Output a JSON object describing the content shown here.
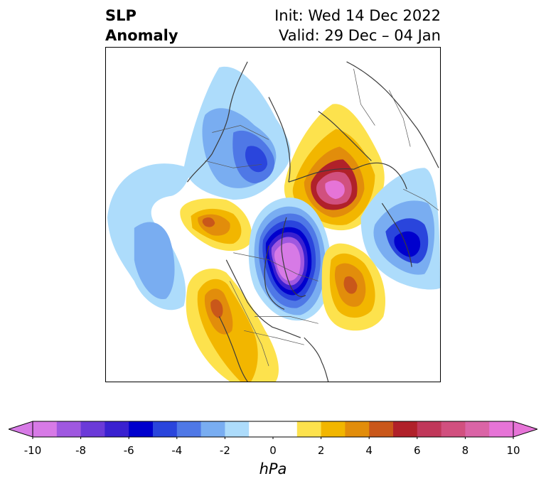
{
  "title": {
    "left_line1": "SLP",
    "left_line2": "Anomaly",
    "right_line1": "Init: Wed 14 Dec 2022",
    "right_line2": "Valid: 29 Dec – 04 Jan"
  },
  "colorbar": {
    "units": "hPa",
    "range": [
      -10,
      10
    ],
    "step": 1,
    "tick_labels": [
      "-10",
      "-8",
      "-6",
      "-4",
      "-2",
      "0",
      "2",
      "4",
      "6",
      "8",
      "10"
    ],
    "tick_values": [
      -10,
      -8,
      -6,
      -4,
      -2,
      0,
      2,
      4,
      6,
      8,
      10
    ],
    "bins": [
      {
        "from": -10,
        "to": -9,
        "color": "#d77ae6"
      },
      {
        "from": -9,
        "to": -8,
        "color": "#9f58e0"
      },
      {
        "from": -8,
        "to": -7,
        "color": "#6b3ad8"
      },
      {
        "from": -7,
        "to": -6,
        "color": "#3a21d0"
      },
      {
        "from": -6,
        "to": -5,
        "color": "#0000cd"
      },
      {
        "from": -5,
        "to": -4,
        "color": "#2a45dc"
      },
      {
        "from": -4,
        "to": -3,
        "color": "#4f78e6"
      },
      {
        "from": -3,
        "to": -2,
        "color": "#79adf1"
      },
      {
        "from": -2,
        "to": -1,
        "color": "#addcfb"
      },
      {
        "from": -1,
        "to": 1,
        "color": "#ffffff"
      },
      {
        "from": 1,
        "to": 2,
        "color": "#fde24d"
      },
      {
        "from": 2,
        "to": 3,
        "color": "#f2b600"
      },
      {
        "from": 3,
        "to": 4,
        "color": "#e28d0b"
      },
      {
        "from": 4,
        "to": 5,
        "color": "#c9571a"
      },
      {
        "from": 5,
        "to": 6,
        "color": "#b0212a"
      },
      {
        "from": 6,
        "to": 7,
        "color": "#c0385a"
      },
      {
        "from": 7,
        "to": 8,
        "color": "#d1507f"
      },
      {
        "from": 8,
        "to": 9,
        "color": "#da64a6"
      },
      {
        "from": 9,
        "to": 10,
        "color": "#e674d7"
      }
    ],
    "under_color": "#d77ae6",
    "over_color": "#e674d7"
  },
  "map": {
    "projection": "north-polar-stereographic",
    "variable": "SLP",
    "anomaly_centers": [
      {
        "name": "canada-low",
        "value": -10
      },
      {
        "name": "siberia-high",
        "value": 9
      },
      {
        "name": "scandinavia-low",
        "value": -6
      },
      {
        "name": "alaska-high",
        "value": 4
      },
      {
        "name": "atlantic-high",
        "value": 4
      },
      {
        "name": "pacific-low",
        "value": -4
      },
      {
        "name": "arctic-russia-low",
        "value": -5
      }
    ]
  }
}
